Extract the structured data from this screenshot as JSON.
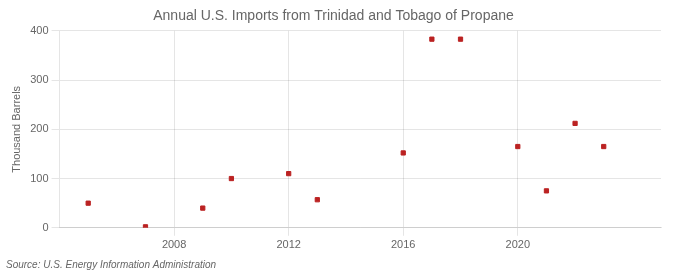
{
  "chart_data": {
    "type": "scatter",
    "title": "Annual U.S. Imports from Trinidad and Tobago of Propane",
    "ylabel": "Thousand Barrels",
    "source": "Source: U.S. Energy Information Administration",
    "x": [
      2005,
      2007,
      2009,
      2010,
      2012,
      2013,
      2016,
      2017,
      2018,
      2020,
      2021,
      2022,
      2023
    ],
    "values": [
      50,
      2,
      40,
      100,
      110,
      57,
      152,
      383,
      383,
      165,
      75,
      212,
      165
    ],
    "color": "#bb2222",
    "marker": "square",
    "xlim": [
      2004,
      2025
    ],
    "xticks": [
      2008,
      2012,
      2016,
      2020
    ],
    "ylim": [
      0,
      400
    ],
    "yticks": [
      0,
      100,
      200,
      300,
      400
    ],
    "grid": true
  }
}
